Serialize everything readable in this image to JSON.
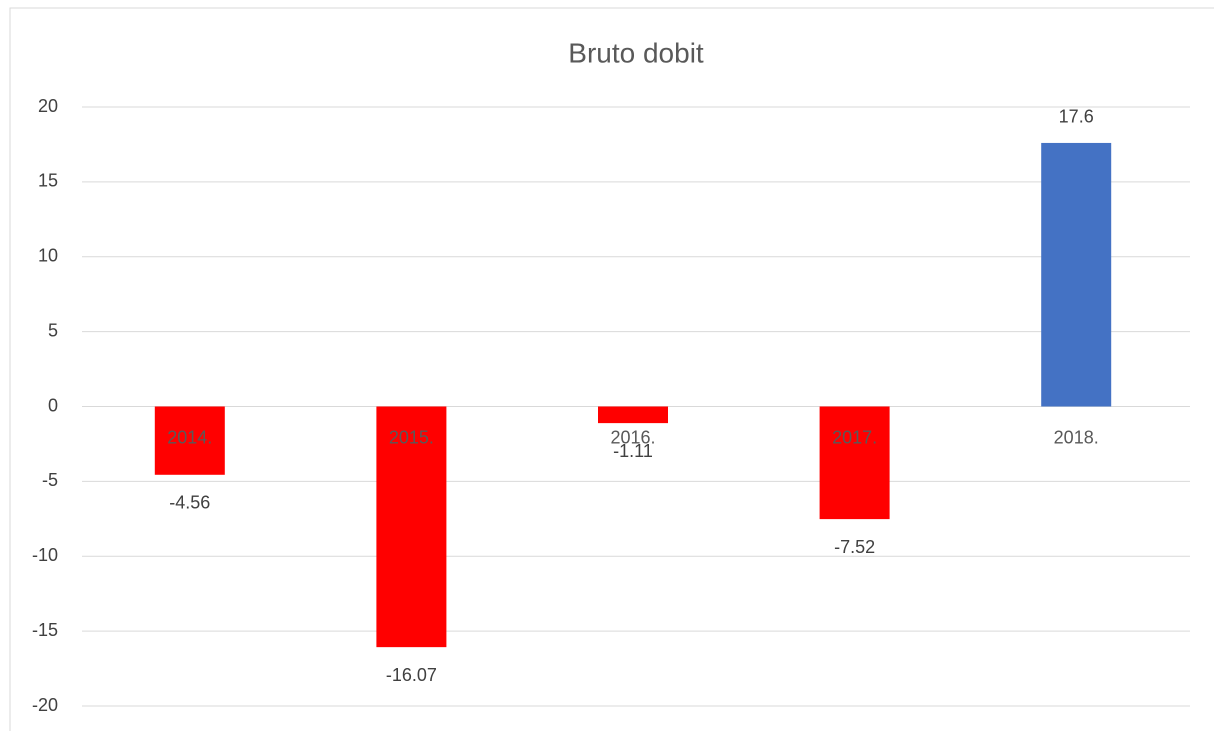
{
  "chart_data": {
    "type": "bar",
    "title": "Bruto dobit",
    "categories": [
      "2014.",
      "2015.",
      "2016.",
      "2017.",
      "2018."
    ],
    "values": [
      -4.56,
      -16.07,
      -1.11,
      -7.52,
      17.6
    ],
    "colors": [
      "#ff0000",
      "#ff0000",
      "#ff0000",
      "#ff0000",
      "#4472c4"
    ],
    "ylim": [
      -20,
      20
    ],
    "yticks": [
      -20,
      -15,
      -10,
      -5,
      0,
      5,
      10,
      15,
      20
    ],
    "grid": true
  }
}
